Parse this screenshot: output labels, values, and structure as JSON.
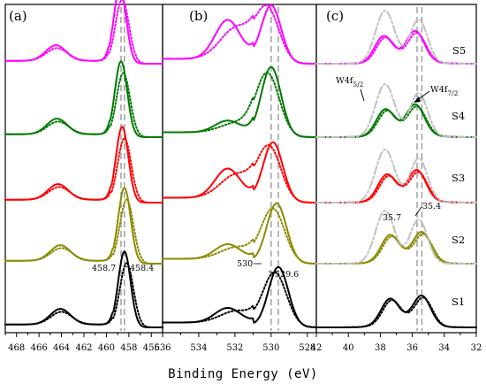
{
  "xlabel": "Binding Energy (eV)",
  "colors": {
    "S1": "#000000",
    "S2": "#8b8b00",
    "S3": "#ff0000",
    "S4": "#007a00",
    "S5": "#ff00ff",
    "reference": "#9a9a9a",
    "metallic": "#c0c0c0"
  },
  "chart_data": [
    {
      "panel": "(a)",
      "type": "line",
      "x_reversed": true,
      "xlim": [
        469,
        455
      ],
      "xticks": [
        468,
        466,
        464,
        462,
        460,
        458,
        456
      ],
      "samples": [
        "S1",
        "S2",
        "S3",
        "S4",
        "S5"
      ],
      "peak_positions_eV": {
        "S1": 458.4,
        "S2": 458.4,
        "S3": 458.6,
        "S4": 458.7,
        "S5": 458.8
      },
      "reference_lines": [
        458.7,
        458.4
      ],
      "annotations": [
        {
          "text": "458.7",
          "x": 458.7
        },
        {
          "text": "458.4",
          "x": 458.4
        }
      ]
    },
    {
      "panel": "(b)",
      "type": "line",
      "x_reversed": true,
      "xlim": [
        536,
        527.5
      ],
      "xticks": [
        536,
        534,
        532,
        530,
        528
      ],
      "samples": [
        "S1",
        "S2",
        "S3",
        "S4",
        "S5"
      ],
      "peak_positions_eV": {
        "S1": 529.6,
        "S2": 529.7,
        "S3": 529.9,
        "S4": 530.0,
        "S5": 530.0
      },
      "reference_lines": [
        530,
        529.6
      ],
      "annotations": [
        {
          "text": "530",
          "x": 530
        },
        {
          "text": "529.6",
          "x": 529.6
        }
      ]
    },
    {
      "panel": "(c)",
      "type": "line",
      "x_reversed": true,
      "xlim": [
        42,
        32
      ],
      "xticks": [
        42,
        40,
        38,
        36,
        34,
        32
      ],
      "samples": [
        "S1",
        "S2",
        "S3",
        "S4",
        "S5"
      ],
      "peak_positions_eV": {
        "S1": [
          37.4,
          35.4
        ],
        "S2": [
          37.4,
          35.4
        ],
        "S3": [
          37.6,
          35.7
        ],
        "S4": [
          37.7,
          35.8
        ],
        "S5": [
          37.8,
          35.8
        ]
      },
      "reference_lines": [
        35.7,
        35.4
      ],
      "annotations": [
        {
          "text": "35.7",
          "x": 35.7
        },
        {
          "text": "35.4",
          "x": 35.4
        },
        {
          "text": "W4f",
          "sub": "5/2"
        },
        {
          "text": "W4f",
          "sub": "7/2"
        }
      ],
      "sample_labels": [
        "S5",
        "S4",
        "S3",
        "S2",
        "S1"
      ]
    }
  ],
  "panel_labels": [
    "(a)",
    "(b)",
    "(c)"
  ]
}
